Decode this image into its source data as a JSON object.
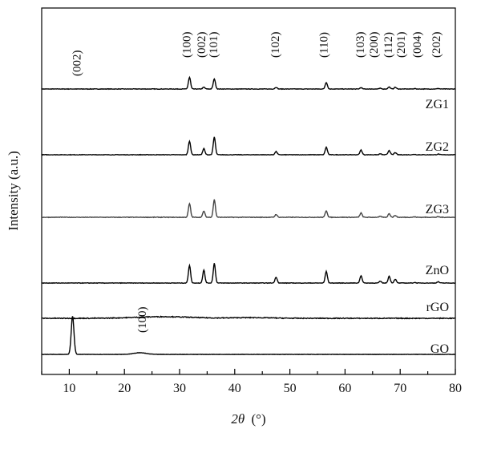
{
  "chart_data": {
    "type": "line",
    "title": "",
    "xlabel": "2θ (°)",
    "xlabel_symbol": "2θ",
    "xlabel_unit": "(°)",
    "ylabel": "Intensity (a.u.)",
    "xlim": [
      5,
      80
    ],
    "x_ticks": [
      10,
      20,
      30,
      40,
      50,
      60,
      70,
      80
    ],
    "y_ticks": [],
    "grid": false,
    "legend": "none",
    "series_labels_placement": "right, above each trace",
    "line_color": "#000000",
    "series": [
      {
        "name": "ZG1",
        "baseline": 0,
        "noise": 0.18,
        "peaks": [
          {
            "x": 31.8,
            "h": 8.5
          },
          {
            "x": 34.4,
            "h": 1.3
          },
          {
            "x": 36.3,
            "h": 7.5
          },
          {
            "x": 47.5,
            "h": 1.2
          },
          {
            "x": 56.6,
            "h": 4.8
          },
          {
            "x": 62.9,
            "h": 1.0
          },
          {
            "x": 66.4,
            "h": 0.5
          },
          {
            "x": 68.0,
            "h": 1.5
          },
          {
            "x": 69.1,
            "h": 1.3
          },
          {
            "x": 72.6,
            "h": 0.3
          },
          {
            "x": 76.9,
            "h": 0.4
          }
        ]
      },
      {
        "name": "ZG2",
        "baseline": 0,
        "noise": 0.18,
        "peaks": [
          {
            "x": 31.8,
            "h": 10
          },
          {
            "x": 34.4,
            "h": 4.5
          },
          {
            "x": 36.3,
            "h": 13
          },
          {
            "x": 47.5,
            "h": 2.3
          },
          {
            "x": 56.6,
            "h": 5.5
          },
          {
            "x": 62.9,
            "h": 3.5
          },
          {
            "x": 66.4,
            "h": 0.7
          },
          {
            "x": 68.0,
            "h": 3.2
          },
          {
            "x": 69.1,
            "h": 1.6
          },
          {
            "x": 72.6,
            "h": 0.3
          },
          {
            "x": 76.9,
            "h": 0.5
          }
        ]
      },
      {
        "name": "ZG3",
        "baseline": 0,
        "noise": 0.22,
        "peaks": [
          {
            "x": 31.8,
            "h": 10
          },
          {
            "x": 34.4,
            "h": 4.6
          },
          {
            "x": 36.3,
            "h": 13
          },
          {
            "x": 47.5,
            "h": 2.1
          },
          {
            "x": 56.6,
            "h": 4.8
          },
          {
            "x": 62.9,
            "h": 3.2
          },
          {
            "x": 66.4,
            "h": 0.7
          },
          {
            "x": 68.0,
            "h": 2.8
          },
          {
            "x": 69.1,
            "h": 1.4
          },
          {
            "x": 72.6,
            "h": 0.3
          },
          {
            "x": 76.9,
            "h": 0.4
          }
        ]
      },
      {
        "name": "ZnO",
        "baseline": 0,
        "noise": 0.18,
        "peaks": [
          {
            "x": 31.8,
            "h": 13
          },
          {
            "x": 34.4,
            "h": 9.5
          },
          {
            "x": 36.3,
            "h": 14.5
          },
          {
            "x": 47.5,
            "h": 4.3
          },
          {
            "x": 56.6,
            "h": 8.5
          },
          {
            "x": 62.9,
            "h": 5.5
          },
          {
            "x": 66.4,
            "h": 1.3
          },
          {
            "x": 68.0,
            "h": 5.0
          },
          {
            "x": 69.1,
            "h": 2.8
          },
          {
            "x": 72.6,
            "h": 0.4
          },
          {
            "x": 76.9,
            "h": 0.9
          }
        ]
      },
      {
        "name": "rGO",
        "baseline": 0,
        "noise": 0.3,
        "broad": [
          {
            "x": 27,
            "h": 1.2,
            "w": 7
          },
          {
            "x": 43,
            "h": 0.5,
            "w": 5
          }
        ],
        "peaks": []
      },
      {
        "name": "GO",
        "baseline": 0,
        "noise": 0.12,
        "broad": [
          {
            "x": 22.8,
            "h": 1.2,
            "w": 1.6
          }
        ],
        "peaks": [
          {
            "x": 10.6,
            "h": 28,
            "w": 0.35
          }
        ]
      }
    ],
    "peak_labels": [
      {
        "text": "(100)",
        "x": 31.2
      },
      {
        "text": "(002)",
        "x": 33.9
      },
      {
        "text": "(101)",
        "x": 36.1
      },
      {
        "text": "(102)",
        "x": 47.3
      },
      {
        "text": "(110)",
        "x": 56.1
      },
      {
        "text": "(103)",
        "x": 62.7
      },
      {
        "text": "(200)",
        "x": 65.2
      },
      {
        "text": "(112)",
        "x": 67.8
      },
      {
        "text": "(201)",
        "x": 70.1
      },
      {
        "text": "(004)",
        "x": 73.0
      },
      {
        "text": "(202)",
        "x": 76.5
      }
    ],
    "extra_labels": [
      {
        "text": "(002)",
        "x": 11.3,
        "trace": "GO"
      },
      {
        "text": "(100)",
        "x": 23.2,
        "trace": "GO"
      }
    ]
  }
}
